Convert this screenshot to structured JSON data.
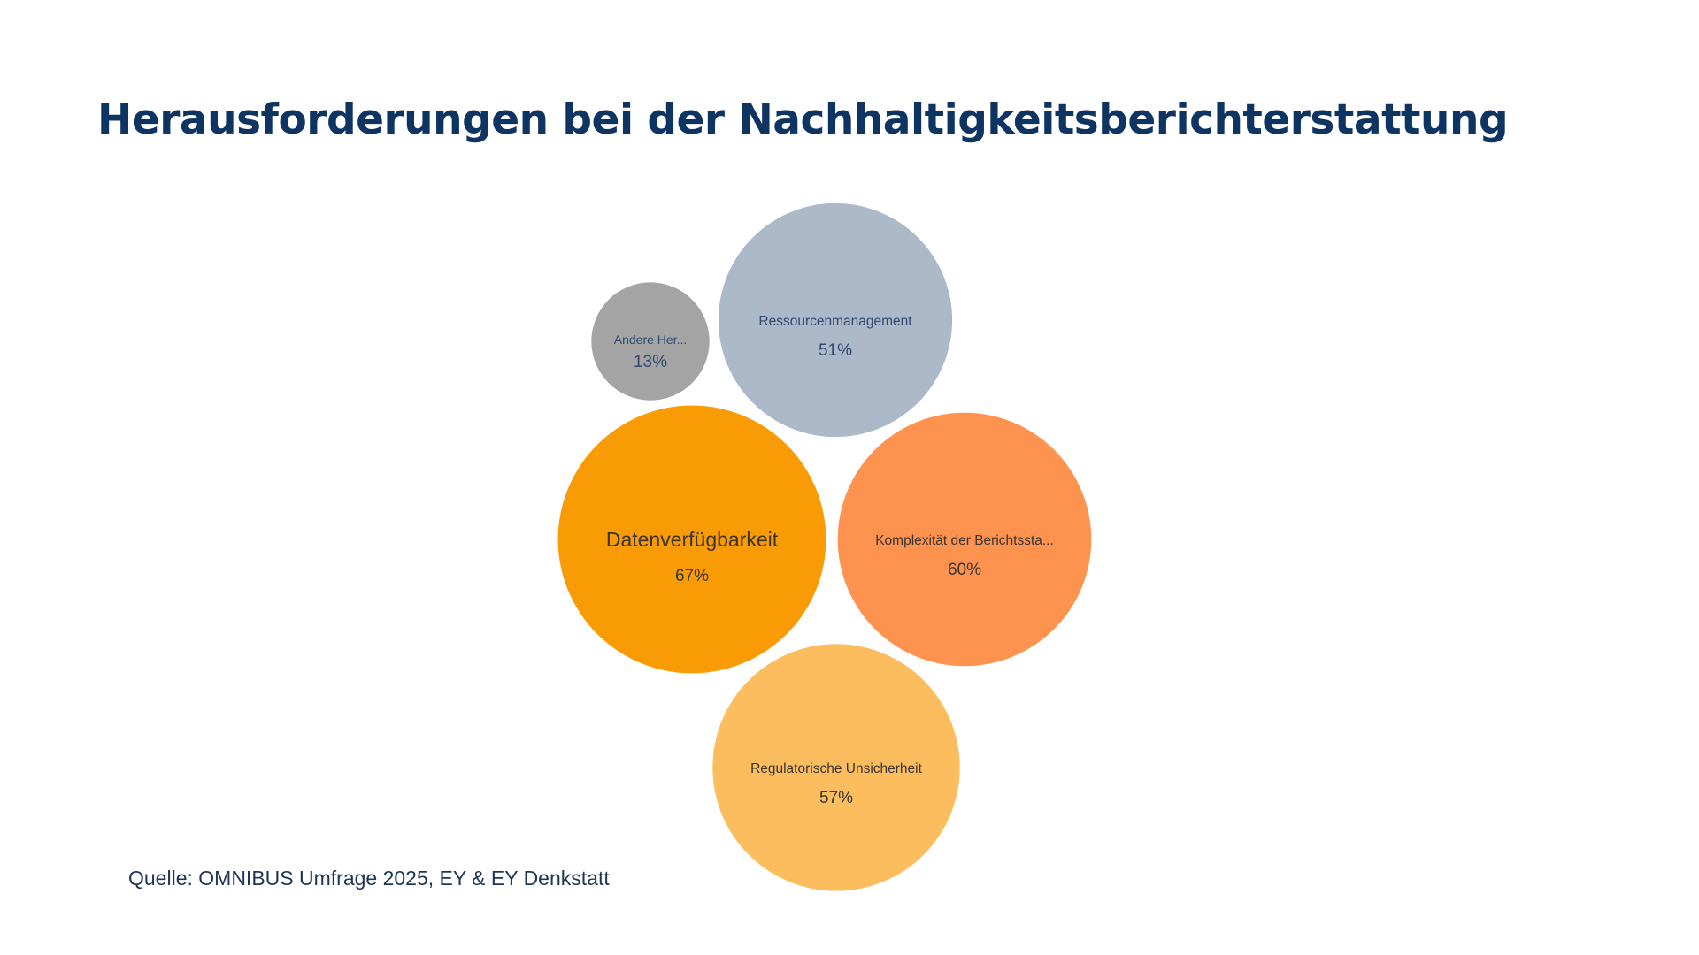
{
  "title": "Herausforderungen bei der Nachhaltigkeitsberichterstattung",
  "source": "Quelle: OMNIBUS Umfrage 2025, EY & EY Denkstatt",
  "chart_data": {
    "type": "bubble",
    "unit": "%",
    "bubbles": [
      {
        "label": "Andere Her...",
        "value": 13,
        "value_label": "13%",
        "color": "#a4a4a4",
        "text_color": "#2f4a6e"
      },
      {
        "label": "Ressourcenmanagement",
        "value": 51,
        "value_label": "51%",
        "color": "#abb9c8",
        "text_color": "#2f4a6e"
      },
      {
        "label": "Datenverfügbarkeit",
        "value": 67,
        "value_label": "67%",
        "color": "#f99b05",
        "text_color": "#3a3530"
      },
      {
        "label": "Komplexität der Berichtssta...",
        "value": 60,
        "value_label": "60%",
        "color": "#fe924f",
        "text_color": "#3a3530"
      },
      {
        "label": "Regulatorische Unsicherheit",
        "value": 57,
        "value_label": "57%",
        "color": "#fcbd5e",
        "text_color": "#3a3530"
      }
    ]
  }
}
